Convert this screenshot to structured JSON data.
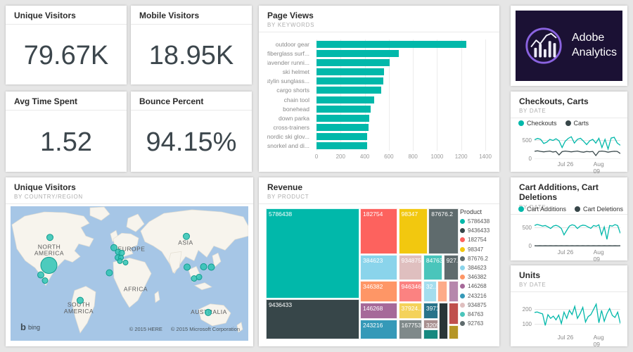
{
  "colors": {
    "accent": "#01B8AA",
    "dark": "#374649",
    "page_bg": "#E6E6E6",
    "card_bg": "#FFFFFF",
    "ocean": "#A6C6E6",
    "land": "#F7F4ED"
  },
  "kpis": [
    {
      "title": "Unique Visitors",
      "value": "79.67K"
    },
    {
      "title": "Mobile Visitors",
      "value": "18.95K"
    },
    {
      "title": "Avg Time Spent",
      "value": "1.52"
    },
    {
      "title": "Bounce Percent",
      "value": "94.15%"
    }
  ],
  "logo": {
    "line1": "Adobe",
    "line2": "Analytics",
    "bg": "#1B1134",
    "ring": "#8A63E0"
  },
  "chart_data": [
    {
      "id": "page_views",
      "type": "bar",
      "orientation": "horizontal",
      "title": "Page Views",
      "subtitle": "BY KEYWORDS",
      "categories": [
        "outdoor gear",
        "fiberglass surf...",
        "lavender runni...",
        "ski helmet",
        "stylin sunglass...",
        "cargo shorts",
        "chain tool",
        "bonehead",
        "down parka",
        "cross-trainers",
        "nordic ski glov...",
        "snorkel and di..."
      ],
      "values": [
        1240,
        680,
        605,
        562,
        557,
        537,
        479,
        448,
        438,
        434,
        421,
        418
      ],
      "xticks": [
        0,
        200,
        400,
        600,
        800,
        1000,
        1200,
        1400
      ],
      "xlim": [
        0,
        1400
      ],
      "bar_color": "#01B8AA",
      "grid": true
    },
    {
      "id": "checkouts_carts",
      "type": "line",
      "title": "Checkouts, Carts",
      "subtitle": "BY DATE",
      "legend_position": "top",
      "series": [
        {
          "name": "Checkouts",
          "color": "#01B8AA",
          "values": [
            520,
            555,
            530,
            420,
            455,
            530,
            500,
            545,
            490,
            310,
            480,
            555,
            600,
            430,
            530,
            560,
            480,
            390,
            490,
            530,
            430,
            560,
            310,
            530,
            270,
            565,
            585,
            430,
            370
          ]
        },
        {
          "name": "Carts",
          "color": "#374649",
          "values": [
            210,
            222,
            205,
            195,
            205,
            215,
            190,
            205,
            112,
            200,
            215,
            205,
            195,
            205,
            215,
            196,
            186,
            205,
            196,
            205,
            95,
            205,
            215,
            205,
            186,
            200,
            210,
            205,
            150
          ]
        }
      ],
      "yticks": [
        0,
        500
      ],
      "ylim": [
        0,
        680
      ],
      "xticklabels": [
        "Jul 26",
        "Aug 09"
      ]
    },
    {
      "id": "unique_visitors_map",
      "type": "map",
      "title": "Unique Visitors",
      "subtitle": "BY COUNTRY/REGION",
      "provider_label": "bing",
      "attribution_here": "© 2015 HERE",
      "attribution_ms": "© 2015 Microsoft Corporation",
      "bubble_color": "#2FC3B4",
      "bubble_stroke": "#149D8F",
      "labels": [
        {
          "lines": [
            "NORTH",
            "AMERICA"
          ],
          "x": 55,
          "y": 60
        },
        {
          "lines": [
            "SOUTH",
            "AMERICA"
          ],
          "x": 97,
          "y": 142
        },
        {
          "lines": [
            "EUROPE"
          ],
          "x": 172,
          "y": 63
        },
        {
          "lines": [
            "AFRICA"
          ],
          "x": 178,
          "y": 120
        },
        {
          "lines": [
            "ASIA"
          ],
          "x": 249,
          "y": 54
        },
        {
          "lines": [
            "AUSTRALIA"
          ],
          "x": 282,
          "y": 152
        }
      ],
      "bubbles": [
        {
          "x": 56,
          "y": 44,
          "r": 4.5
        },
        {
          "x": 54.5,
          "y": 83.5,
          "r": 11.5
        },
        {
          "x": 43,
          "y": 97,
          "r": 4.5
        },
        {
          "x": 49,
          "y": 105,
          "r": 4
        },
        {
          "x": 147,
          "y": 58.5,
          "r": 4.5
        },
        {
          "x": 153,
          "y": 64.5,
          "r": 4
        },
        {
          "x": 158,
          "y": 66,
          "r": 4
        },
        {
          "x": 152.5,
          "y": 72.5,
          "r": 4
        },
        {
          "x": 157,
          "y": 72.5,
          "r": 3.5
        },
        {
          "x": 155.5,
          "y": 77.5,
          "r": 3.5
        },
        {
          "x": 163.5,
          "y": 79.5,
          "r": 3.5
        },
        {
          "x": 140.5,
          "y": 94,
          "r": 4.5
        },
        {
          "x": 99,
          "y": 133,
          "r": 4.5
        },
        {
          "x": 250,
          "y": 42.5,
          "r": 4.5
        },
        {
          "x": 251,
          "y": 86,
          "r": 4.5
        },
        {
          "x": 274.5,
          "y": 85.5,
          "r": 4.5
        },
        {
          "x": 285.5,
          "y": 86,
          "r": 4.5
        },
        {
          "x": 261,
          "y": 102,
          "r": 4
        },
        {
          "x": 268,
          "y": 100,
          "r": 4
        },
        {
          "x": 281,
          "y": 150,
          "r": 4.5
        }
      ]
    },
    {
      "id": "revenue_treemap",
      "type": "treemap",
      "title": "Revenue",
      "subtitle": "BY PRODUCT",
      "legend_title": "Product",
      "cells": [
        {
          "label": "5786438",
          "color": "#01B8AA",
          "x": 0,
          "y": 0,
          "w": 48.4,
          "h": 68.8
        },
        {
          "label": "9436433",
          "color": "#374649",
          "x": 0,
          "y": 69.3,
          "w": 48.4,
          "h": 30.7
        },
        {
          "label": "182754",
          "color": "#FD625E",
          "x": 48.9,
          "y": 0,
          "w": 19.4,
          "h": 34.8
        },
        {
          "label": "98347",
          "color": "#F2C80F",
          "x": 68.8,
          "y": 0,
          "w": 15.1,
          "h": 34.8
        },
        {
          "label": "87676.2",
          "color": "#5F6B6D",
          "x": 84.4,
          "y": 0,
          "w": 15.6,
          "h": 34.8
        },
        {
          "label": "384623",
          "color": "#8AD4EB",
          "x": 48.9,
          "y": 35.3,
          "w": 19.4,
          "h": 19.6
        },
        {
          "label": "934875",
          "color": "#DFBFBF",
          "x": 68.8,
          "y": 35.3,
          "w": 12.4,
          "h": 19.6
        },
        {
          "label": "84763",
          "color": "#4AC5BB",
          "x": 81.7,
          "y": 35.3,
          "w": 10.0,
          "h": 19.6,
          "dotted": true
        },
        {
          "label": "927...",
          "color": "#5F6B6D",
          "x": 92.2,
          "y": 35.3,
          "w": 7.8,
          "h": 19.6
        },
        {
          "label": "346382",
          "color": "#FE9666",
          "x": 48.9,
          "y": 55.4,
          "w": 19.4,
          "h": 16.0
        },
        {
          "label": "946346",
          "color": "#FB8281",
          "x": 68.8,
          "y": 55.4,
          "w": 12.4,
          "h": 16.0
        },
        {
          "label": "32...",
          "color": "#A4DDEE",
          "x": 81.7,
          "y": 55.4,
          "w": 7.0,
          "h": 16.0,
          "dotted": true
        },
        {
          "label": "",
          "color": "#FDAB89",
          "x": 89.2,
          "y": 55.4,
          "w": 5.1,
          "h": 16.0,
          "dotted": true
        },
        {
          "label": "",
          "color": "#B687AC",
          "x": 94.8,
          "y": 55.4,
          "w": 5.2,
          "h": 16.0,
          "dotted": true
        },
        {
          "label": "146268",
          "color": "#A66999",
          "x": 48.9,
          "y": 71.9,
          "w": 19.4,
          "h": 12.4
        },
        {
          "label": "37924...",
          "color": "#F4D25A",
          "x": 68.8,
          "y": 71.9,
          "w": 12.4,
          "h": 12.4
        },
        {
          "label": "3971...",
          "color": "#28738A",
          "x": 81.7,
          "y": 71.9,
          "w": 7.6,
          "h": 12.4
        },
        {
          "label": "",
          "color": "#293537",
          "x": 89.8,
          "y": 71.9,
          "w": 4.6,
          "h": 28.1
        },
        {
          "label": "",
          "color": "#C0504D",
          "x": 94.8,
          "y": 71.9,
          "w": 5.2,
          "h": 17.0
        },
        {
          "label": "243216",
          "color": "#3599B8",
          "x": 48.9,
          "y": 84.8,
          "w": 19.4,
          "h": 15.2
        },
        {
          "label": "167753",
          "color": "#7F898A",
          "x": 68.8,
          "y": 84.8,
          "w": 12.4,
          "h": 15.2
        },
        {
          "label": "3209...",
          "color": "#A78F8F",
          "x": 81.7,
          "y": 84.8,
          "w": 7.6,
          "h": 7.0,
          "dotted": true
        },
        {
          "label": "",
          "color": "#168980",
          "x": 81.7,
          "y": 92.3,
          "w": 7.6,
          "h": 7.7
        },
        {
          "label": "",
          "color": "#B59525",
          "x": 94.8,
          "y": 89.4,
          "w": 5.2,
          "h": 10.6
        }
      ],
      "legend": [
        {
          "label": "5786438",
          "color": "#01B8AA"
        },
        {
          "label": "9436433",
          "color": "#374649"
        },
        {
          "label": "182754",
          "color": "#FD625E"
        },
        {
          "label": "98347",
          "color": "#F2C80F"
        },
        {
          "label": "87676.2",
          "color": "#5F6B6D"
        },
        {
          "label": "384623",
          "color": "#8AD4EB"
        },
        {
          "label": "346382",
          "color": "#FE9666"
        },
        {
          "label": "146268",
          "color": "#A66999"
        },
        {
          "label": "243216",
          "color": "#3599B8"
        },
        {
          "label": "934875",
          "color": "#DFBFBF"
        },
        {
          "label": "84763",
          "color": "#4AC5BB"
        },
        {
          "label": "92763",
          "color": "#5F6B6D"
        }
      ]
    },
    {
      "id": "cart_additions_deletions",
      "type": "line",
      "title": "Cart Additions, Cart Deletions",
      "subtitle": "BY DATE",
      "legend_position": "top",
      "series": [
        {
          "name": "Cart Additions",
          "color": "#01B8AA",
          "values": [
            560,
            590,
            568,
            545,
            560,
            525,
            480,
            545,
            565,
            540,
            480,
            310,
            430,
            545,
            580,
            560,
            480,
            545,
            570,
            560,
            520,
            485,
            560,
            540,
            580,
            310,
            520,
            190,
            560,
            545,
            585,
            560,
            350
          ]
        },
        {
          "name": "Cart Deletions",
          "color": "#374649",
          "values": [
            18,
            15,
            18,
            15,
            18,
            15,
            18,
            15,
            18,
            15,
            18,
            15,
            18,
            15,
            18,
            15,
            18,
            15,
            18,
            15,
            18,
            15,
            18,
            15,
            18,
            15,
            18,
            15,
            18,
            15,
            18,
            15,
            18
          ]
        }
      ],
      "yticks": [
        0,
        500
      ],
      "ylim": [
        0,
        680
      ],
      "xticklabels": [
        "Jul 26",
        "Aug 09"
      ]
    },
    {
      "id": "units",
      "type": "line",
      "title": "Units",
      "subtitle": "BY DATE",
      "series": [
        {
          "name": "Units",
          "color": "#01B8AA",
          "values": [
            180,
            183,
            176,
            170,
            92,
            165,
            140,
            155,
            130,
            162,
            105,
            182,
            140,
            194,
            166,
            221,
            140,
            172,
            214,
            115,
            152,
            165,
            200,
            236,
            110,
            194,
            120,
            172,
            206,
            160,
            146,
            182,
            105
          ]
        }
      ],
      "yticks": [
        100,
        200
      ],
      "ylim": [
        60,
        260
      ],
      "xticklabels": [
        "Jul 26",
        "Aug 09"
      ]
    }
  ]
}
